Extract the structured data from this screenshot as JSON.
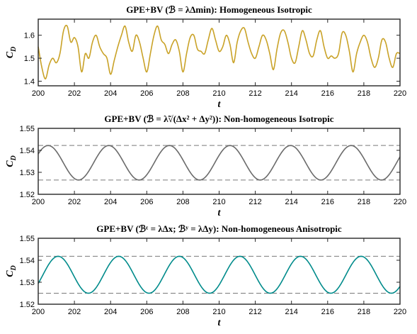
{
  "chart_data": [
    {
      "type": "line",
      "title": "GPE+BV (ℬ = λΔmin): Homogeneous Isotropic",
      "xlabel": "t",
      "ylabel": "CD",
      "xlim": [
        200,
        220
      ],
      "ylim": [
        1.38,
        1.67
      ],
      "xticks": [
        200,
        202,
        204,
        206,
        208,
        210,
        212,
        214,
        216,
        218,
        220
      ],
      "yticks": [
        1.4,
        1.5,
        1.6
      ],
      "ytick_labels": [
        "1.4",
        "1.5",
        "1.6"
      ],
      "grid": false,
      "color": "#C9A227",
      "references": [],
      "series": [
        {
          "x": [
            200.0,
            200.2,
            200.4,
            200.6,
            200.8,
            201.0,
            201.2,
            201.4,
            201.6,
            201.8,
            202.0,
            202.2,
            202.4,
            202.6,
            202.8,
            203.0,
            203.2,
            203.4,
            203.6,
            203.8,
            204.0,
            204.2,
            204.4,
            204.6,
            204.8,
            205.0,
            205.2,
            205.4,
            205.6,
            205.8,
            206.0,
            206.2,
            206.4,
            206.6,
            206.8,
            207.0,
            207.2,
            207.4,
            207.6,
            207.8,
            208.0,
            208.2,
            208.4,
            208.6,
            208.8,
            209.0,
            209.2,
            209.4,
            209.6,
            209.8,
            210.0,
            210.2,
            210.4,
            210.6,
            210.8,
            211.0,
            211.2,
            211.4,
            211.6,
            211.8,
            212.0,
            212.2,
            212.4,
            212.6,
            212.8,
            213.0,
            213.2,
            213.4,
            213.6,
            213.8,
            214.0,
            214.2,
            214.4,
            214.6,
            214.8,
            215.0,
            215.2,
            215.4,
            215.6,
            215.8,
            216.0,
            216.2,
            216.4,
            216.6,
            216.8,
            217.0,
            217.2,
            217.4,
            217.6,
            217.8,
            218.0,
            218.2,
            218.4,
            218.6,
            218.8,
            219.0,
            219.2,
            219.4,
            219.6,
            219.8,
            220.0
          ],
          "y": [
            1.55,
            1.46,
            1.41,
            1.47,
            1.5,
            1.48,
            1.52,
            1.62,
            1.64,
            1.57,
            1.59,
            1.55,
            1.44,
            1.52,
            1.5,
            1.57,
            1.6,
            1.55,
            1.52,
            1.5,
            1.43,
            1.49,
            1.55,
            1.6,
            1.64,
            1.57,
            1.53,
            1.6,
            1.57,
            1.5,
            1.44,
            1.52,
            1.6,
            1.64,
            1.58,
            1.56,
            1.52,
            1.56,
            1.58,
            1.53,
            1.44,
            1.52,
            1.59,
            1.6,
            1.54,
            1.53,
            1.52,
            1.58,
            1.63,
            1.58,
            1.53,
            1.55,
            1.6,
            1.56,
            1.48,
            1.57,
            1.62,
            1.63,
            1.57,
            1.52,
            1.5,
            1.55,
            1.6,
            1.58,
            1.52,
            1.45,
            1.54,
            1.61,
            1.62,
            1.57,
            1.5,
            1.48,
            1.55,
            1.62,
            1.58,
            1.52,
            1.51,
            1.58,
            1.62,
            1.55,
            1.5,
            1.51,
            1.5,
            1.52,
            1.61,
            1.6,
            1.53,
            1.44,
            1.52,
            1.57,
            1.6,
            1.57,
            1.5,
            1.46,
            1.5,
            1.58,
            1.57,
            1.5,
            1.46,
            1.52,
            1.52
          ]
        }
      ]
    },
    {
      "type": "line",
      "title": "GPE+BV (ℬ = λ̃√(Δx² + Δy²)): Non-homogeneous Isotropic",
      "xlabel": "t",
      "ylabel": "CD",
      "xlim": [
        200,
        220
      ],
      "ylim": [
        1.52,
        1.55
      ],
      "xticks": [
        200,
        202,
        204,
        206,
        208,
        210,
        212,
        214,
        216,
        218,
        220
      ],
      "yticks": [
        1.52,
        1.53,
        1.54,
        1.55
      ],
      "ytick_labels": [
        "1.52",
        "1.53",
        "1.54",
        "1.55"
      ],
      "grid": false,
      "color": "#6B6B6B",
      "references": [
        1.5422,
        1.5265
      ],
      "series": [
        {
          "sine": {
            "mean": 1.53435,
            "amplitude": 0.00785,
            "period": 3.35,
            "peak_t": 200.55
          }
        }
      ]
    },
    {
      "type": "line",
      "title": "GPE+BV (ℬᵋ = λΔx; ℬʸ = λΔy): Non-homogeneous Anisotropic",
      "xlabel": "t",
      "ylabel": "CD",
      "xlim": [
        200,
        220
      ],
      "ylim": [
        1.52,
        1.55
      ],
      "xticks": [
        200,
        202,
        204,
        206,
        208,
        210,
        212,
        214,
        216,
        218,
        220
      ],
      "yticks": [
        1.52,
        1.53,
        1.54,
        1.55
      ],
      "ytick_labels": [
        "1.52",
        "1.53",
        "1.54",
        "1.55"
      ],
      "grid": false,
      "color": "#008B8B",
      "references": [
        1.5418,
        1.525
      ],
      "series": [
        {
          "sine": {
            "mean": 1.5334,
            "amplitude": 0.0084,
            "period": 3.35,
            "peak_t": 201.1
          }
        }
      ]
    }
  ]
}
